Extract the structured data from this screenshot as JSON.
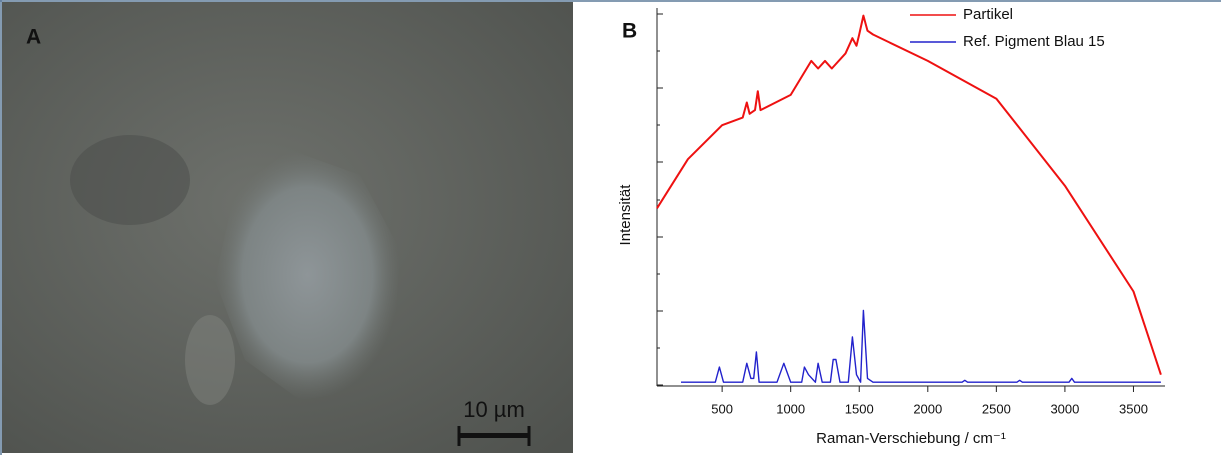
{
  "panel_a": {
    "label": "A",
    "scale_bar": "10 µm"
  },
  "chart_data": {
    "type": "line",
    "panel_label": "B",
    "x_label": "Raman-Verschiebung / cm⁻¹",
    "y_label": "Intensität",
    "xlim": [
      25,
      3730
    ],
    "xticks": [
      500,
      1000,
      1500,
      2000,
      2500,
      3000,
      3500
    ],
    "ylim": [
      0,
      100
    ],
    "legend": "top-right",
    "series": [
      {
        "name": "Partikel",
        "color": "#ee1111",
        "x": [
          25,
          250,
          500,
          650,
          680,
          700,
          740,
          760,
          780,
          1000,
          1150,
          1200,
          1250,
          1300,
          1400,
          1450,
          1480,
          1500,
          1530,
          1560,
          1600,
          2000,
          2500,
          3000,
          3500,
          3700
        ],
        "values": [
          47,
          60,
          69,
          71,
          75,
          72,
          73,
          78,
          73,
          77,
          86,
          84,
          86,
          84,
          88,
          92,
          90,
          93,
          98,
          94,
          93,
          86,
          76,
          53,
          25,
          3
        ]
      },
      {
        "name": "Ref. Pigment Blau 15",
        "color": "#2222cc",
        "x": [
          200,
          450,
          480,
          510,
          650,
          680,
          710,
          730,
          750,
          770,
          900,
          950,
          1000,
          1080,
          1100,
          1130,
          1180,
          1200,
          1230,
          1290,
          1310,
          1330,
          1360,
          1420,
          1450,
          1480,
          1510,
          1530,
          1560,
          1600,
          2250,
          2270,
          2290,
          2650,
          2670,
          2690,
          3030,
          3050,
          3070,
          3700
        ],
        "values": [
          1,
          1,
          5,
          1,
          1,
          6,
          2,
          2,
          9,
          1,
          1,
          6,
          1,
          1,
          5,
          3,
          1,
          6,
          1,
          1,
          7,
          7,
          1,
          1,
          13,
          3,
          1,
          20,
          2,
          1,
          1,
          1.5,
          1,
          1,
          1.5,
          1,
          1,
          2,
          1,
          1
        ]
      }
    ]
  }
}
